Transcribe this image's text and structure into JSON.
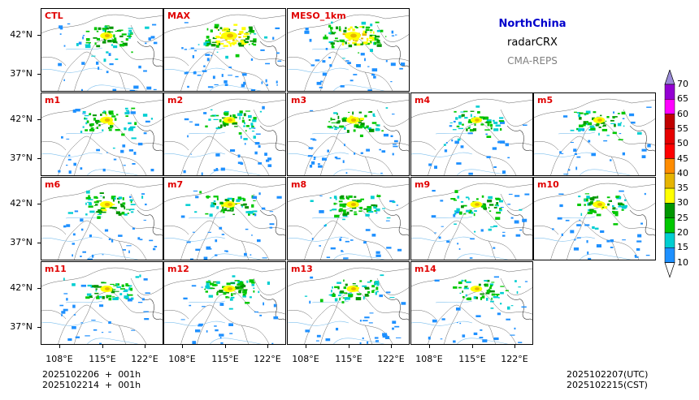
{
  "header": {
    "region": "NorthChina",
    "variable": "radarCRX",
    "system": "CMA-REPS"
  },
  "axes": {
    "y_labels": [
      "42°N",
      "37°N"
    ],
    "x_labels": [
      "108°E",
      "115°E",
      "122°E"
    ]
  },
  "panels": [
    {
      "label": "CTL",
      "intensity": 0.55
    },
    {
      "label": "MAX",
      "intensity": 1.0
    },
    {
      "label": "MESO_1km",
      "intensity": 0.95
    },
    {
      "label": "m1",
      "intensity": 0.6
    },
    {
      "label": "m2",
      "intensity": 0.5
    },
    {
      "label": "m3",
      "intensity": 0.6
    },
    {
      "label": "m4",
      "intensity": 0.4
    },
    {
      "label": "m5",
      "intensity": 0.45
    },
    {
      "label": "m6",
      "intensity": 0.6
    },
    {
      "label": "m7",
      "intensity": 0.5
    },
    {
      "label": "m8",
      "intensity": 0.55
    },
    {
      "label": "m9",
      "intensity": 0.45
    },
    {
      "label": "m10",
      "intensity": 0.55
    },
    {
      "label": "m11",
      "intensity": 0.5
    },
    {
      "label": "m12",
      "intensity": 0.55
    },
    {
      "label": "m13",
      "intensity": 0.5
    },
    {
      "label": "m14",
      "intensity": 0.45
    }
  ],
  "colorbar": {
    "levels": [
      "10",
      "15",
      "20",
      "25",
      "30",
      "35",
      "40",
      "45",
      "50",
      "55",
      "60",
      "65",
      "70"
    ],
    "colors": [
      "#1e90ff",
      "#00ced1",
      "#00c800",
      "#009600",
      "#ffff00",
      "#e6b400",
      "#ff8c00",
      "#ff0000",
      "#e60000",
      "#c00000",
      "#ff00ff",
      "#9400d3"
    ],
    "over_color": "#9a8bd8",
    "under_color": "#ffffff"
  },
  "footer": {
    "init_utc": "2025102206  +  001h",
    "init_cst": "2025102214  +  001h",
    "valid_utc": "2025102207(UTC)",
    "valid_cst": "2025102215(CST)"
  }
}
